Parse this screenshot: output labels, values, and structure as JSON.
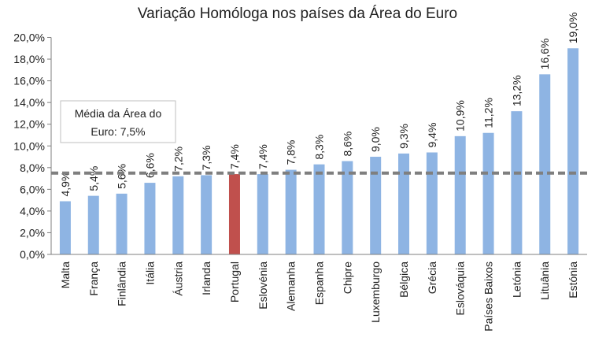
{
  "chart_data": {
    "type": "bar",
    "title": "Variação Homóloga nos países da Área do Euro",
    "xlabel": "",
    "ylabel": "",
    "ylim": [
      0,
      20
    ],
    "ytick_step": 2,
    "ytick_labels": [
      "0,0%",
      "2,0%",
      "4,0%",
      "6,0%",
      "8,0%",
      "10,0%",
      "12,0%",
      "14,0%",
      "16,0%",
      "18,0%",
      "20,0%"
    ],
    "categories": [
      "Malta",
      "França",
      "Finlândia",
      "Itália",
      "Áustria",
      "Irlanda",
      "Portugal",
      "Eslovénia",
      "Alemanha",
      "Espanha",
      "Chipre",
      "Luxemburgo",
      "Bélgica",
      "Grécia",
      "Eslováquia",
      "Países Baixos",
      "Letónia",
      "Lituânia",
      "Estónia"
    ],
    "values": [
      4.9,
      5.4,
      5.6,
      6.6,
      7.2,
      7.3,
      7.4,
      7.4,
      7.8,
      8.3,
      8.6,
      9.0,
      9.3,
      9.4,
      10.9,
      11.2,
      13.2,
      16.6,
      19.0
    ],
    "data_labels": [
      "4,9%",
      "5,4%",
      "5,6%",
      "6,6%",
      "7,2%",
      "7,3%",
      "7,4%",
      "7,4%",
      "7,8%",
      "8,3%",
      "8,6%",
      "9,0%",
      "9,3%",
      "9,4%",
      "10,9%",
      "11,2%",
      "13,2%",
      "16,6%",
      "19,0%"
    ],
    "highlight_category": "Portugal",
    "reference_line": {
      "value": 7.5,
      "style": "dashed",
      "label_lines": [
        "Média da Área do",
        "Euro: 7,5%"
      ]
    },
    "grid": false,
    "legend": "none",
    "colors": {
      "bar": "#8EB4E3",
      "highlight": "#C0504D",
      "reference_line": "#7F7F7F",
      "axis": "#7F7F7F",
      "callout_border": "#BFBFBF"
    }
  }
}
